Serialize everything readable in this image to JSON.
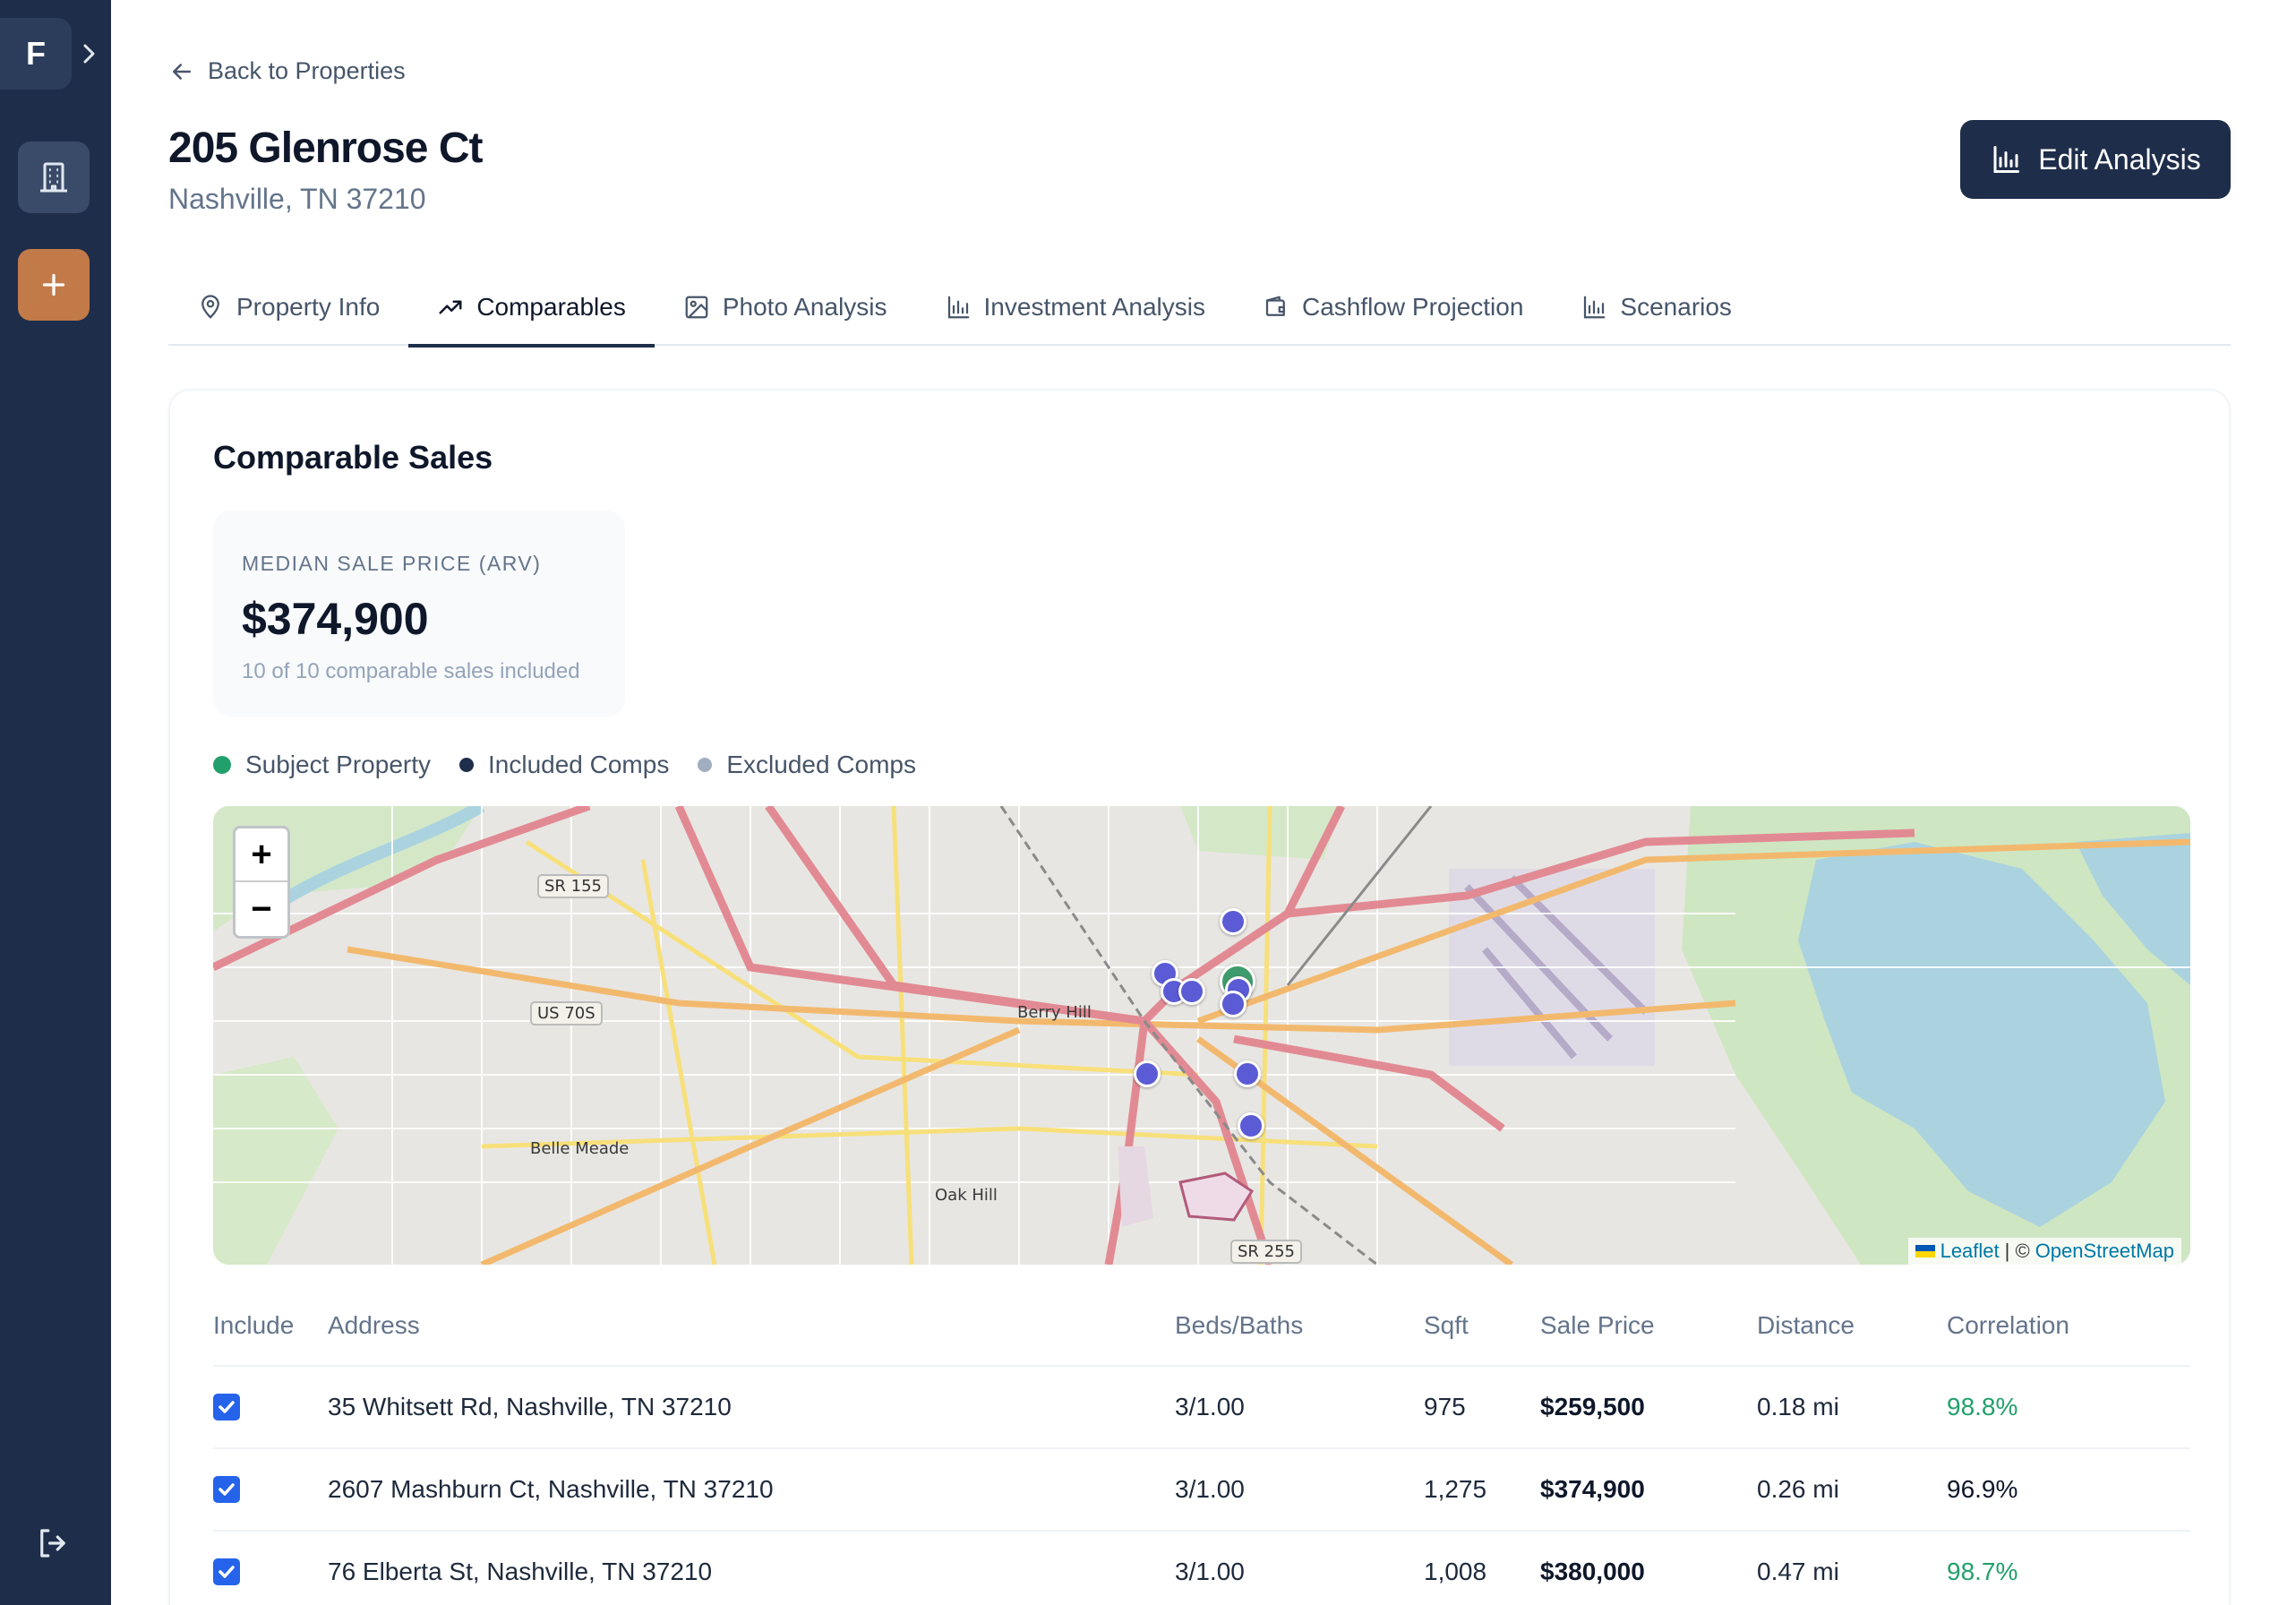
{
  "sidebar": {
    "logo_letter": "F",
    "items": [
      {
        "name": "properties",
        "icon": "building-icon"
      },
      {
        "name": "add-property",
        "icon": "plus-icon"
      }
    ],
    "logout_icon": "logout-icon"
  },
  "header": {
    "back_label": "Back to Properties",
    "title": "205 Glenrose Ct",
    "subtitle": "Nashville, TN 37210",
    "edit_label": "Edit Analysis"
  },
  "tabs": [
    {
      "label": "Property Info",
      "icon": "map-pin-icon",
      "active": false
    },
    {
      "label": "Comparables",
      "icon": "trending-up-icon",
      "active": true
    },
    {
      "label": "Photo Analysis",
      "icon": "image-icon",
      "active": false
    },
    {
      "label": "Investment Analysis",
      "icon": "bar-chart-icon",
      "active": false
    },
    {
      "label": "Cashflow Projection",
      "icon": "wallet-icon",
      "active": false
    },
    {
      "label": "Scenarios",
      "icon": "bar-chart-icon",
      "active": false
    }
  ],
  "comparables": {
    "title": "Comparable Sales",
    "median_label": "MEDIAN SALE PRICE (ARV)",
    "median_value": "$374,900",
    "median_sub": "10 of 10 comparable sales included",
    "legend": [
      "Subject Property",
      "Included Comps",
      "Excluded Comps"
    ]
  },
  "map": {
    "zoom_in": "+",
    "zoom_out": "−",
    "attribution_leaflet": "Leaflet",
    "attribution_sep": "| ©",
    "attribution_osm": "OpenStreetMap",
    "labels": {
      "berry_hill": "Berry Hill",
      "belle_meade": "Belle Meade",
      "oak_hill": "Oak Hill",
      "sr155": "SR 155",
      "us70s": "US 70S",
      "sr255": "SR 255"
    }
  },
  "table": {
    "headers": [
      "Include",
      "Address",
      "Beds/Baths",
      "Sqft",
      "Sale Price",
      "Distance",
      "Correlation"
    ],
    "rows": [
      {
        "address": "35 Whitsett Rd, Nashville, TN 37210",
        "beds_baths": "3/1.00",
        "sqft": "975",
        "price": "$259,500",
        "distance": "0.18 mi",
        "correlation": "98.8%",
        "corr_high": true
      },
      {
        "address": "2607 Mashburn Ct, Nashville, TN 37210",
        "beds_baths": "3/1.00",
        "sqft": "1,275",
        "price": "$374,900",
        "distance": "0.26 mi",
        "correlation": "96.9%",
        "corr_high": false
      },
      {
        "address": "76 Elberta St, Nashville, TN 37210",
        "beds_baths": "3/1.00",
        "sqft": "1,008",
        "price": "$380,000",
        "distance": "0.47 mi",
        "correlation": "98.7%",
        "corr_high": true
      }
    ]
  }
}
